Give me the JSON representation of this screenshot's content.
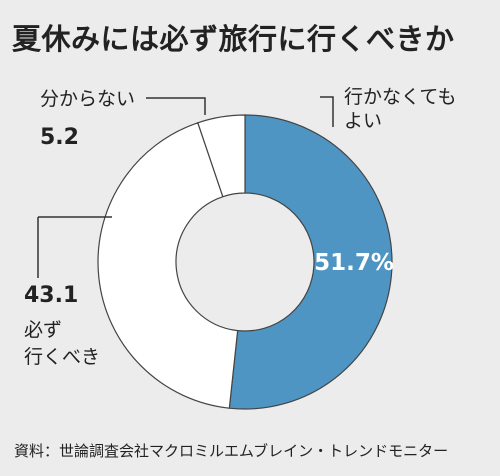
{
  "title": "夏休みには必ず旅行に行くべきか",
  "chart_data": {
    "type": "pie",
    "donut": true,
    "title": "夏休みには必ず旅行に行くべきか",
    "slices": [
      {
        "label": "行かなくてもよい",
        "value": 51.7,
        "display": "51.7%",
        "color": "#4f95c4"
      },
      {
        "label": "必ず行くべき",
        "value": 43.1,
        "display": "43.1",
        "color": "#ffffff"
      },
      {
        "label": "分からない",
        "value": 5.2,
        "display": "5.2",
        "color": "#ffffff"
      }
    ]
  },
  "labels": {
    "yoi_line1": "行かなくても",
    "yoi_line2": "よい",
    "must_value": "43.1",
    "must_line1": "必ず",
    "must_line2": "行くべき",
    "unknown_label": "分からない",
    "unknown_value": "5.2",
    "center_value": "51.7%"
  },
  "source": "資料：世論調査会社マクロミルエムブレイン・トレンドモニター"
}
